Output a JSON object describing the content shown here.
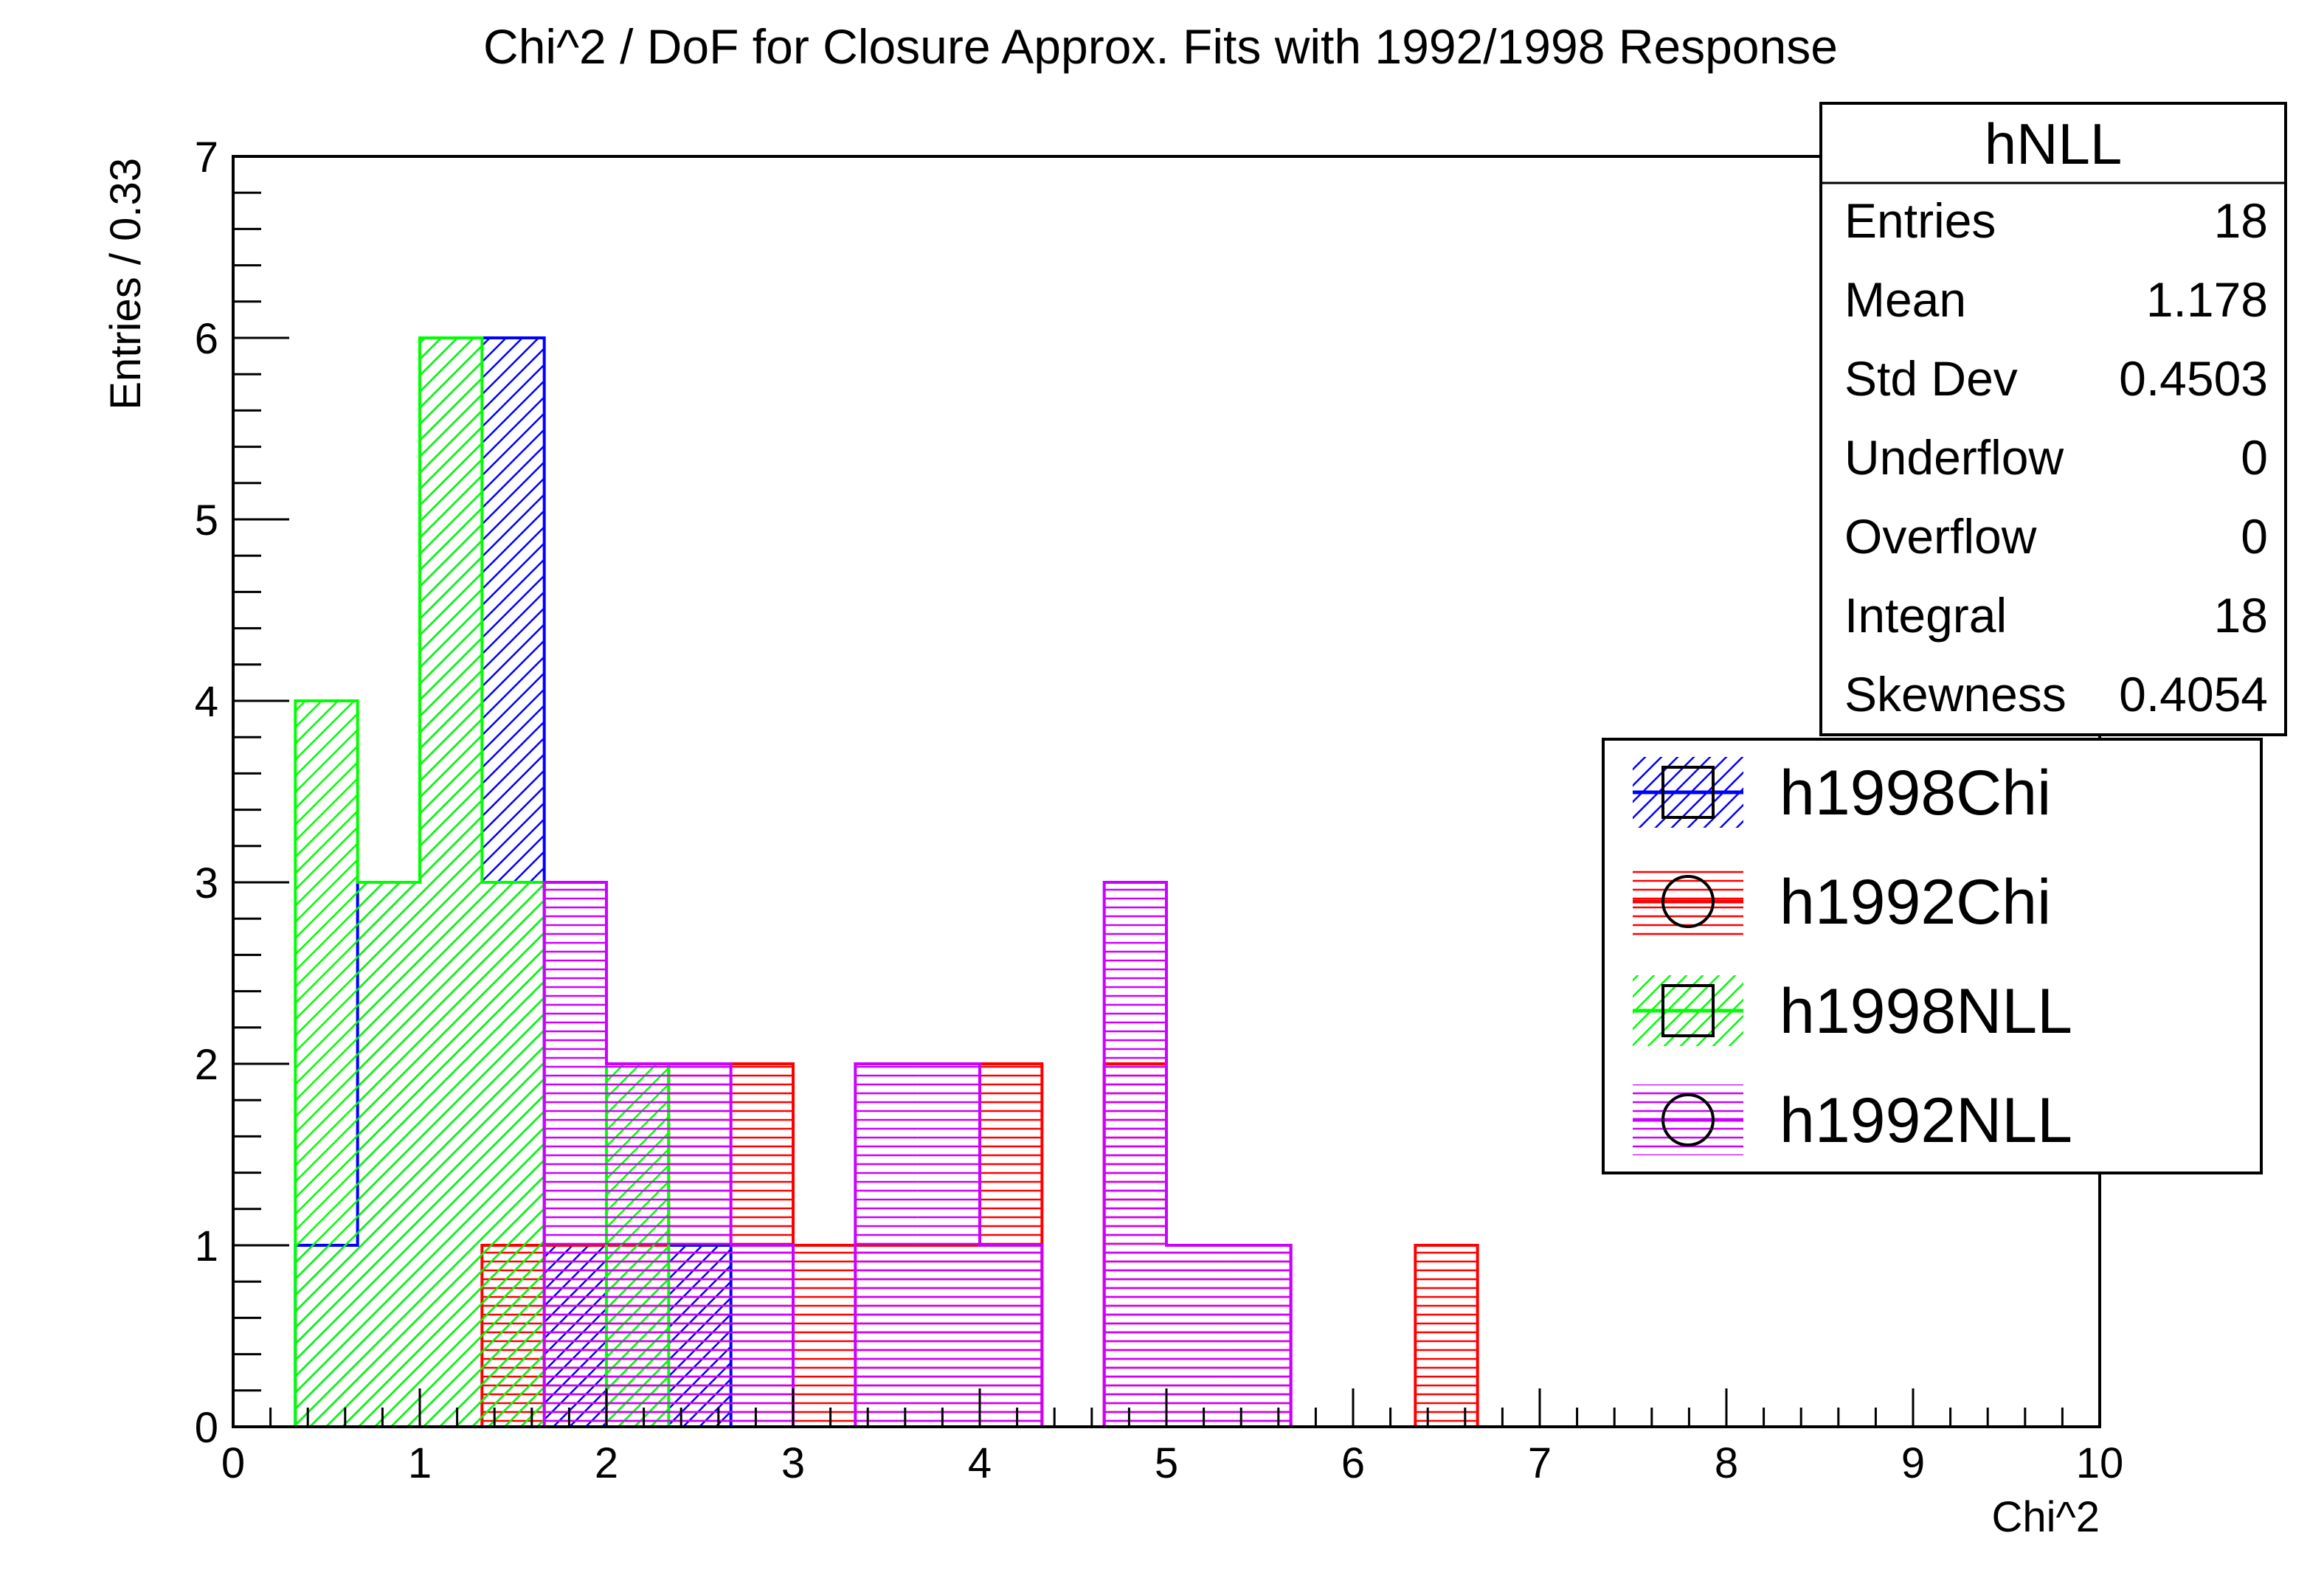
{
  "chart_data": {
    "type": "bar",
    "title": "Chi^2 / DoF for Closure Approx. Fits with 1992/1998 Response",
    "xlabel": "Chi^2",
    "ylabel": "Entries / 0.33",
    "xlim": [
      0,
      10
    ],
    "ylim": [
      0,
      7
    ],
    "x_ticks": [
      "0",
      "1",
      "2",
      "3",
      "4",
      "5",
      "6",
      "7",
      "8",
      "9",
      "10"
    ],
    "y_ticks": [
      "0",
      "1",
      "2",
      "3",
      "4",
      "5",
      "6",
      "7"
    ],
    "bin_width": 0.3333,
    "bin_edges": [
      0,
      0.3333,
      0.6667,
      1.0,
      1.3333,
      1.6667,
      2.0,
      2.3333,
      2.6667,
      3.0,
      3.3333,
      3.6667,
      4.0,
      4.3333,
      4.6667,
      5.0,
      5.3333,
      5.6667,
      6.0,
      6.3333,
      6.6667,
      7.0
    ],
    "series": [
      {
        "name": "h1998Chi",
        "color": "#0000ff",
        "fill": "diagonal-hatch",
        "marker": "square",
        "values": [
          0,
          1,
          3,
          6,
          6,
          1,
          1,
          1,
          0,
          0,
          0,
          0,
          0,
          0,
          0,
          0,
          0,
          0,
          0,
          0,
          0
        ]
      },
      {
        "name": "h1992Chi",
        "color": "#ff0000",
        "fill": "horizontal-hatch",
        "marker": "circle",
        "values": [
          0,
          0,
          0,
          0,
          1,
          1,
          1,
          2,
          2,
          1,
          1,
          1,
          2,
          0,
          2,
          1,
          1,
          0,
          0,
          1,
          0
        ]
      },
      {
        "name": "h1998NLL",
        "color": "#00ff00",
        "fill": "diagonal-hatch",
        "marker": "square",
        "values": [
          0,
          4,
          3,
          6,
          3,
          0,
          2,
          0,
          0,
          0,
          0,
          0,
          0,
          0,
          0,
          0,
          0,
          0,
          0,
          0,
          0
        ]
      },
      {
        "name": "h1992NLL",
        "color": "#cc00ff",
        "fill": "horizontal-hatch",
        "marker": "circle",
        "values": [
          0,
          0,
          0,
          0,
          0,
          3,
          2,
          2,
          1,
          0,
          2,
          2,
          1,
          0,
          3,
          1,
          1,
          0,
          0,
          0,
          0
        ]
      }
    ],
    "legend_position": "right"
  },
  "stats": {
    "name": "hNLL",
    "rows": [
      {
        "label": "Entries",
        "value": "18"
      },
      {
        "label": "Mean",
        "value": "1.178"
      },
      {
        "label": "Std Dev",
        "value": "0.4503"
      },
      {
        "label": "Underflow",
        "value": "0"
      },
      {
        "label": "Overflow",
        "value": "0"
      },
      {
        "label": "Integral",
        "value": "18"
      },
      {
        "label": "Skewness",
        "value": "0.4054"
      }
    ]
  }
}
